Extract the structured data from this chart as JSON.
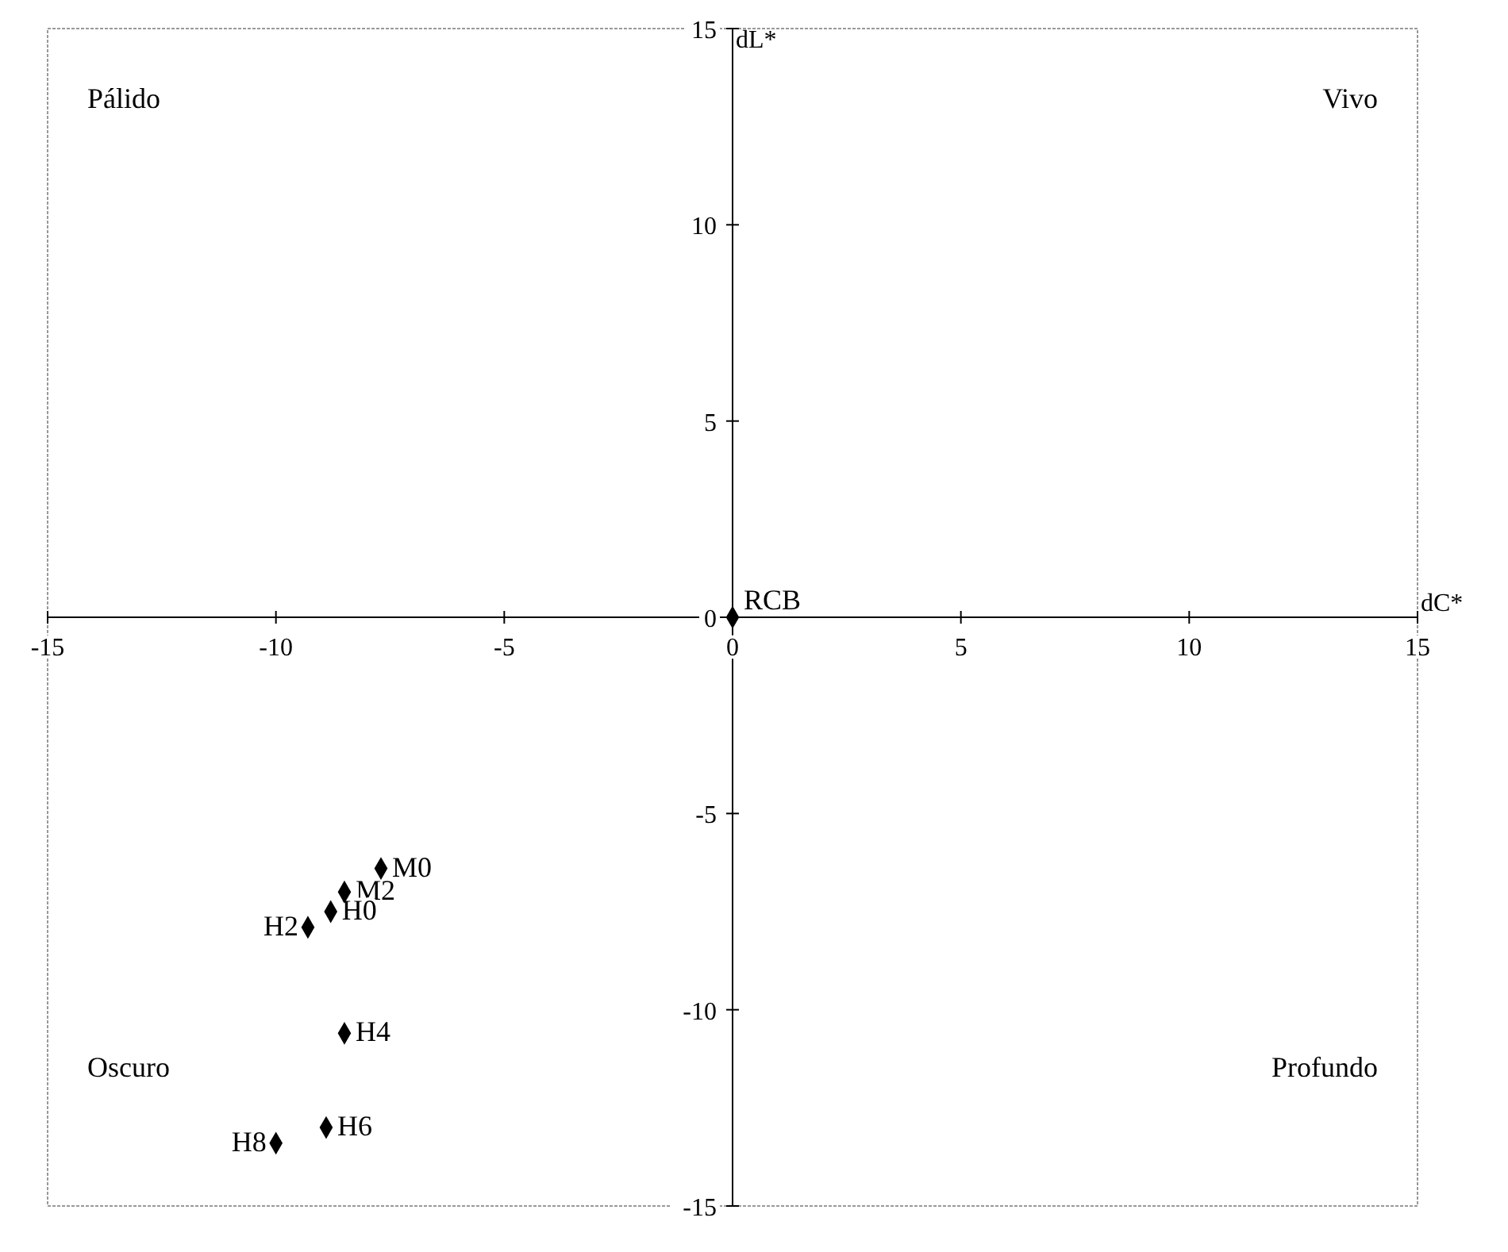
{
  "chart_data": {
    "type": "scatter",
    "xlabel": "dC*",
    "ylabel": "dL*",
    "xlim": [
      -15,
      15
    ],
    "ylim": [
      -15,
      15
    ],
    "xticks": [
      -15,
      -10,
      -5,
      0,
      5,
      10,
      15
    ],
    "yticks": [
      -15,
      -10,
      -5,
      0,
      5,
      10,
      15
    ],
    "grid": false,
    "marker": "diamond",
    "annotations": [
      "Pálido",
      "Vivo",
      "Oscuro",
      "Profundo"
    ],
    "series": [
      {
        "name": "RCB",
        "color": "#000000",
        "x": [
          0
        ],
        "values": [
          0
        ]
      },
      {
        "name": "M0",
        "color": "#000000",
        "x": [
          -7.7
        ],
        "values": [
          -6.4
        ]
      },
      {
        "name": "M2",
        "color": "#000000",
        "x": [
          -8.5
        ],
        "values": [
          -7.0
        ]
      },
      {
        "name": "H0",
        "color": "#000000",
        "x": [
          -8.8
        ],
        "values": [
          -7.5
        ]
      },
      {
        "name": "H2",
        "color": "#000000",
        "x": [
          -9.3
        ],
        "values": [
          -7.9
        ]
      },
      {
        "name": "H4",
        "color": "#000000",
        "x": [
          -8.5
        ],
        "values": [
          -10.6
        ]
      },
      {
        "name": "H6",
        "color": "#000000",
        "x": [
          -8.9
        ],
        "values": [
          -13.0
        ]
      },
      {
        "name": "H8",
        "color": "#000000",
        "x": [
          -10.0
        ],
        "values": [
          -13.4
        ]
      }
    ]
  }
}
